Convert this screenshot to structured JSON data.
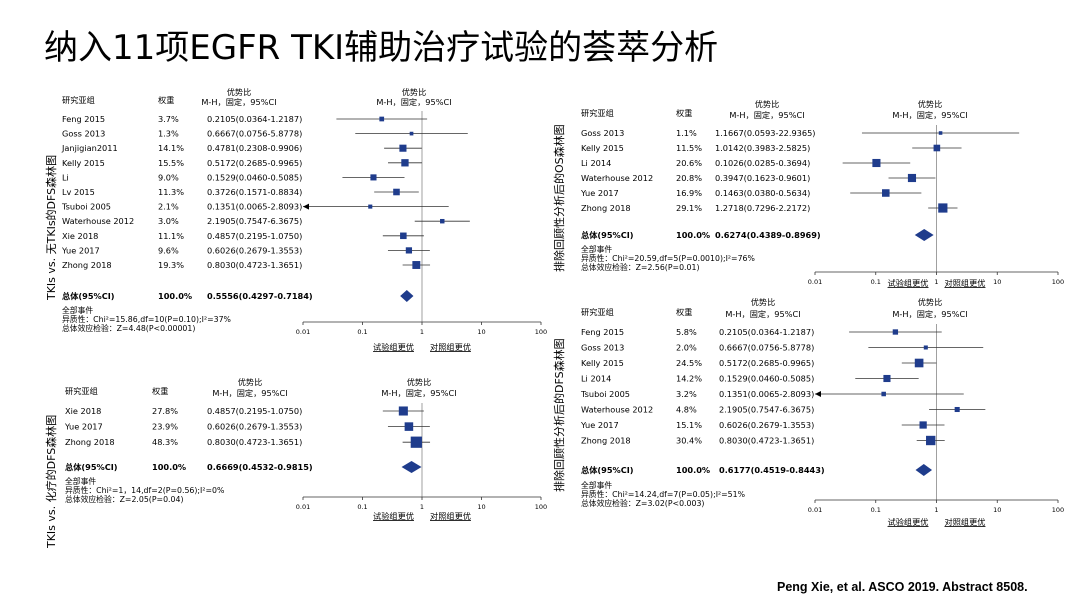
{
  "title": "纳入11项EGFR TKI辅助治疗试验的荟萃分析",
  "footnote": "Peng Xie, et al. ASCO 2019. Abstract 8508.",
  "chart_data": [
    {
      "type": "forest",
      "side_label": "TKIs vs. 无TKIs的DFS森林图",
      "columns": {
        "study": "研究亚组",
        "weight": "权重",
        "or_header": [
          "优势比",
          "M-H，固定，95%CI"
        ],
        "plot_header": [
          "优势比",
          "M-H，固定，95%CI"
        ]
      },
      "x_scale": "log",
      "ticks": [
        "0.01",
        "0.1",
        "1",
        "10",
        "100"
      ],
      "xlabel_left": "试验组更优",
      "xlabel_right": "对照组更优",
      "studies": [
        {
          "name": "Feng 2015",
          "weight": "3.7%",
          "ci_text": "0.2105(0.0364-1.2187)",
          "or": 0.2105,
          "lo": 0.0364,
          "hi": 1.2187
        },
        {
          "name": "Goss 2013",
          "weight": "1.3%",
          "ci_text": "0.6667(0.0756-5.8778)",
          "or": 0.6667,
          "lo": 0.0756,
          "hi": 5.8778
        },
        {
          "name": "Janjigian2011",
          "weight": "14.1%",
          "ci_text": "0.4781(0.2308-0.9906)",
          "or": 0.4781,
          "lo": 0.2308,
          "hi": 0.9906
        },
        {
          "name": "Kelly 2015",
          "weight": "15.5%",
          "ci_text": "0.5172(0.2685-0.9965)",
          "or": 0.5172,
          "lo": 0.2685,
          "hi": 0.9965
        },
        {
          "name": "Li",
          "weight": "9.0%",
          "ci_text": "0.1529(0.0460-0.5085)",
          "or": 0.1529,
          "lo": 0.046,
          "hi": 0.5085
        },
        {
          "name": "Lv 2015",
          "weight": "11.3%",
          "ci_text": "0.3726(0.1571-0.8834)",
          "or": 0.3726,
          "lo": 0.1571,
          "hi": 0.8834
        },
        {
          "name": "Tsuboi 2005",
          "weight": "2.1%",
          "ci_text": "0.1351(0.0065-2.8093)",
          "or": 0.1351,
          "lo": 0.0065,
          "hi": 2.8093
        },
        {
          "name": "Waterhouse 2012",
          "weight": "3.0%",
          "ci_text": "2.1905(0.7547-6.3675)",
          "or": 2.1905,
          "lo": 0.7547,
          "hi": 6.3675
        },
        {
          "name": "Xie 2018",
          "weight": "11.1%",
          "ci_text": "0.4857(0.2195-1.0750)",
          "or": 0.4857,
          "lo": 0.2195,
          "hi": 1.075
        },
        {
          "name": "Yue 2017",
          "weight": "9.6%",
          "ci_text": "0.6026(0.2679-1.3553)",
          "or": 0.6026,
          "lo": 0.2679,
          "hi": 1.3553
        },
        {
          "name": "Zhong 2018",
          "weight": "19.3%",
          "ci_text": "0.8030(0.4723-1.3651)",
          "or": 0.803,
          "lo": 0.4723,
          "hi": 1.3651
        }
      ],
      "total": {
        "name": "总体(95%CI)",
        "weight": "100.0%",
        "ci_text": "0.5556(0.4297-0.7184)",
        "or": 0.5556,
        "lo": 0.4297,
        "hi": 0.7184
      },
      "notes": [
        "全部事件",
        "异质性：Chi²=15.86,df=10(P=0.10);I²=37%",
        "总体效应检验：Z=4.48(P<0.00001)"
      ]
    },
    {
      "type": "forest",
      "side_label": "TKIs vs. 化疗的DFS森林图",
      "columns": {
        "study": "研究亚组",
        "weight": "权重",
        "or_header": [
          "优势比",
          "M-H，固定，95%CI"
        ],
        "plot_header": [
          "优势比",
          "M-H，固定，95%CI"
        ]
      },
      "x_scale": "log",
      "ticks": [
        "0.01",
        "0.1",
        "1",
        "10",
        "100"
      ],
      "xlabel_left": "试验组更优",
      "xlabel_right": "对照组更优",
      "studies": [
        {
          "name": "Xie 2018",
          "weight": "27.8%",
          "ci_text": "0.4857(0.2195-1.0750)",
          "or": 0.4857,
          "lo": 0.2195,
          "hi": 1.075
        },
        {
          "name": "Yue 2017",
          "weight": "23.9%",
          "ci_text": "0.6026(0.2679-1.3553)",
          "or": 0.6026,
          "lo": 0.2679,
          "hi": 1.3553
        },
        {
          "name": "Zhong 2018",
          "weight": "48.3%",
          "ci_text": "0.8030(0.4723-1.3651)",
          "or": 0.803,
          "lo": 0.4723,
          "hi": 1.3651
        }
      ],
      "total": {
        "name": "总体(95%CI)",
        "weight": "100.0%",
        "ci_text": "0.6669(0.4532-0.9815)",
        "or": 0.6669,
        "lo": 0.4532,
        "hi": 0.9815
      },
      "notes": [
        "全部事件",
        "异质性：Chi²=1，14,df=2(P=0.56);I²=0%",
        "总体效应检验：Z=2.05(P=0.04)"
      ]
    },
    {
      "type": "forest",
      "side_label": "排除回顾性分析后的OS森林图",
      "columns": {
        "study": "研究亚组",
        "weight": "权重",
        "or_header": [
          "优势比",
          "M-H，固定，95%CI"
        ],
        "plot_header": [
          "优势比",
          "M-H，固定，95%CI"
        ]
      },
      "x_scale": "log",
      "ticks": [
        "0.01",
        "0.1",
        "1",
        "10",
        "100"
      ],
      "xlabel_left": "试验组更优",
      "xlabel_right": "对照组更优",
      "studies": [
        {
          "name": "Goss 2013",
          "weight": "1.1%",
          "ci_text": "1.1667(0.0593-22.9365)",
          "or": 1.1667,
          "lo": 0.0593,
          "hi": 22.9365
        },
        {
          "name": "Kelly 2015",
          "weight": "11.5%",
          "ci_text": "1.0142(0.3983-2.5825)",
          "or": 1.0142,
          "lo": 0.3983,
          "hi": 2.5825
        },
        {
          "name": "Li 2014",
          "weight": "20.6%",
          "ci_text": "0.1026(0.0285-0.3694)",
          "or": 0.1026,
          "lo": 0.0285,
          "hi": 0.3694
        },
        {
          "name": "Waterhouse 2012",
          "weight": "20.8%",
          "ci_text": "0.3947(0.1623-0.9601)",
          "or": 0.3947,
          "lo": 0.1623,
          "hi": 0.9601
        },
        {
          "name": "Yue 2017",
          "weight": "16.9%",
          "ci_text": "0.1463(0.0380-0.5634)",
          "or": 0.1463,
          "lo": 0.038,
          "hi": 0.5634
        },
        {
          "name": "Zhong 2018",
          "weight": "29.1%",
          "ci_text": "1.2718(0.7296-2.2172)",
          "or": 1.2718,
          "lo": 0.7296,
          "hi": 2.2172
        }
      ],
      "total": {
        "name": "总体(95%CI)",
        "weight": "100.0%",
        "ci_text": "0.6274(0.4389-0.8969)",
        "or": 0.6274,
        "lo": 0.4389,
        "hi": 0.8969
      },
      "notes": [
        "全部事件",
        "异质性：Chi²=20.59,df=5(P=0.0010);I²=76%",
        "总体效应检验：Z=2.56(P=0.01)"
      ]
    },
    {
      "type": "forest",
      "side_label": "排除回顾性分析后的DFS森林图",
      "columns": {
        "study": "研究亚组",
        "weight": "权重",
        "or_header": [
          "优势比",
          "M-H，固定，95%CI"
        ],
        "plot_header": [
          "优势比",
          "M-H，固定，95%CI"
        ]
      },
      "x_scale": "log",
      "ticks": [
        "0.01",
        "0.1",
        "1",
        "10",
        "100"
      ],
      "xlabel_left": "试验组更优",
      "xlabel_right": "对照组更优",
      "studies": [
        {
          "name": "Feng 2015",
          "weight": "5.8%",
          "ci_text": "0.2105(0.0364-1.2187)",
          "or": 0.2105,
          "lo": 0.0364,
          "hi": 1.2187
        },
        {
          "name": "Goss 2013",
          "weight": "2.0%",
          "ci_text": "0.6667(0.0756-5.8778)",
          "or": 0.6667,
          "lo": 0.0756,
          "hi": 5.8778
        },
        {
          "name": "Kelly 2015",
          "weight": "24.5%",
          "ci_text": "0.5172(0.2685-0.9965)",
          "or": 0.5172,
          "lo": 0.2685,
          "hi": 0.9965
        },
        {
          "name": "Li 2014",
          "weight": "14.2%",
          "ci_text": "0.1529(0.0460-0.5085)",
          "or": 0.1529,
          "lo": 0.046,
          "hi": 0.5085
        },
        {
          "name": "Tsuboi 2005",
          "weight": "3.2%",
          "ci_text": "0.1351(0.0065-2.8093)",
          "or": 0.1351,
          "lo": 0.0065,
          "hi": 2.8093
        },
        {
          "name": "Waterhouse 2012",
          "weight": "4.8%",
          "ci_text": "2.1905(0.7547-6.3675)",
          "or": 2.1905,
          "lo": 0.7547,
          "hi": 6.3675
        },
        {
          "name": "Yue 2017",
          "weight": "15.1%",
          "ci_text": "0.6026(0.2679-1.3553)",
          "or": 0.6026,
          "lo": 0.2679,
          "hi": 1.3553
        },
        {
          "name": "Zhong 2018",
          "weight": "30.4%",
          "ci_text": "0.8030(0.4723-1.3651)",
          "or": 0.803,
          "lo": 0.4723,
          "hi": 1.3651
        }
      ],
      "total": {
        "name": "总体(95%CI)",
        "weight": "100.0%",
        "ci_text": "0.6177(0.4519-0.8443)",
        "or": 0.6177,
        "lo": 0.4519,
        "hi": 0.8443
      },
      "notes": [
        "全部事件",
        "异质性：Chi²=14.24,df=7(P=0.05);I²=51%",
        "总体效应检验：Z=3.02(P<0.003)"
      ]
    }
  ]
}
